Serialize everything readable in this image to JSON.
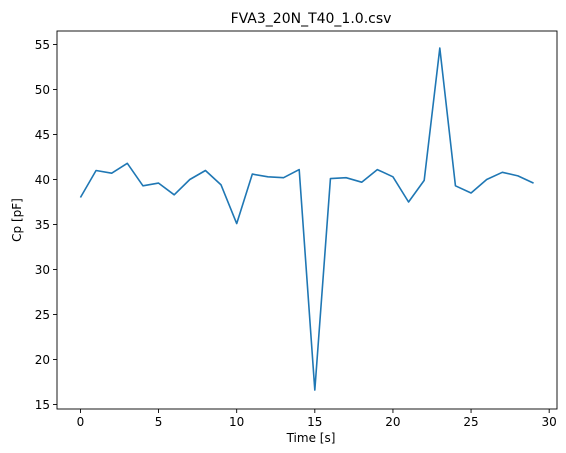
{
  "chart_data": {
    "type": "line",
    "title": "FVA3_20N_T40_1.0.csv",
    "xlabel": "Time [s]",
    "ylabel": "Cp [pF]",
    "xlim": [
      -1.5,
      30.5
    ],
    "ylim": [
      14.5,
      56.5
    ],
    "xticks": [
      0,
      5,
      10,
      15,
      20,
      25,
      30
    ],
    "yticks": [
      15,
      20,
      25,
      30,
      35,
      40,
      45,
      50,
      55
    ],
    "grid": false,
    "legend": "none",
    "series": [
      {
        "color": "#1f77b4",
        "x": [
          0,
          1,
          2,
          3,
          4,
          5,
          6,
          7,
          8,
          9,
          10,
          11,
          12,
          13,
          14,
          15,
          16,
          17,
          18,
          19,
          20,
          21,
          22,
          23,
          24,
          25,
          26,
          27,
          28,
          29
        ],
        "y": [
          38.0,
          41.0,
          40.7,
          41.8,
          39.3,
          39.6,
          38.3,
          40.0,
          41.0,
          39.4,
          35.1,
          40.6,
          40.3,
          40.2,
          41.1,
          16.6,
          40.1,
          40.2,
          39.7,
          41.1,
          40.3,
          37.5,
          39.9,
          54.6,
          39.3,
          38.5,
          40.0,
          40.8,
          40.4,
          39.6
        ]
      }
    ]
  }
}
